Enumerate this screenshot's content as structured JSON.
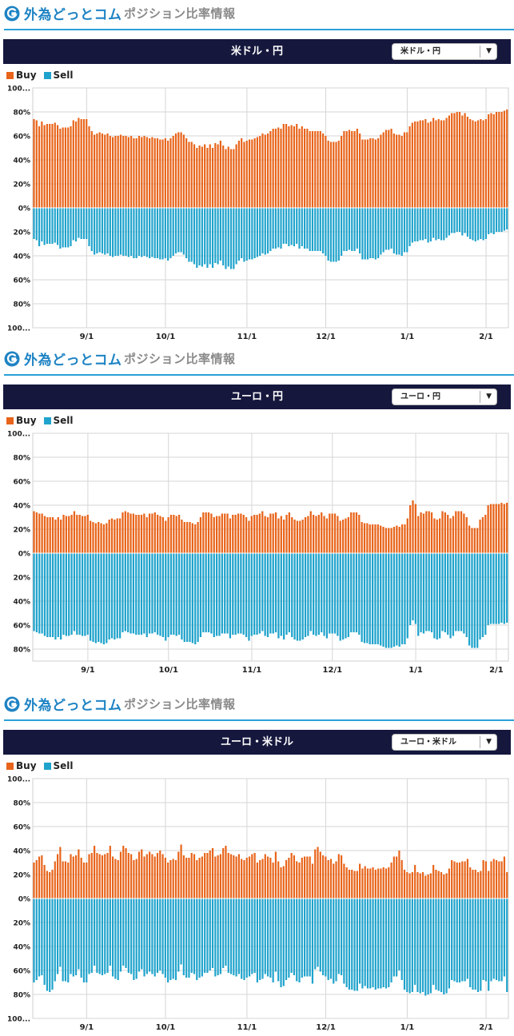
{
  "header": {
    "brand": "外為どっとコム",
    "subtitle": "ポジション比率情報"
  },
  "legend": {
    "buy": "Buy",
    "sell": "Sell"
  },
  "colors": {
    "buy": "#e8641a",
    "sell": "#1fa3cc",
    "titlebar": "#15173d",
    "accent": "#2aa0d8"
  },
  "chart_data": [
    {
      "type": "bar",
      "title": "米ドル・円",
      "select_value": "米ドル・円",
      "series": [
        {
          "name": "Buy"
        },
        {
          "name": "Sell"
        }
      ],
      "x_ticks": [
        "9/1",
        "10/1",
        "11/1",
        "12/1",
        "1/1",
        "2/1"
      ],
      "y_ticks": [
        "100...",
        "80%",
        "60%",
        "40%",
        "20%",
        "0%",
        "20%",
        "40%",
        "60%",
        "80%",
        "100..."
      ],
      "ylim": [
        -100,
        100
      ],
      "grid": true,
      "buy_values": [
        74,
        73,
        68,
        72,
        69,
        70,
        70,
        70,
        71,
        69,
        66,
        67,
        67,
        67,
        68,
        73,
        72,
        75,
        74,
        74,
        74,
        68,
        64,
        61,
        62,
        63,
        62,
        61,
        62,
        60,
        59,
        60,
        60,
        61,
        60,
        60,
        59,
        60,
        58,
        58,
        60,
        59,
        60,
        59,
        58,
        59,
        58,
        58,
        57,
        57,
        58,
        56,
        58,
        60,
        62,
        63,
        63,
        61,
        58,
        55,
        55,
        53,
        50,
        52,
        51,
        53,
        50,
        53,
        50,
        54,
        53,
        56,
        52,
        49,
        51,
        49,
        49,
        53,
        56,
        58,
        55,
        56,
        57,
        57,
        58,
        59,
        60,
        62,
        61,
        62,
        64,
        66,
        66,
        67,
        66,
        70,
        70,
        68,
        69,
        68,
        70,
        66,
        68,
        66,
        66,
        64,
        64,
        64,
        64,
        64,
        62,
        60,
        56,
        55,
        55,
        55,
        56,
        60,
        64,
        64,
        65,
        64,
        64,
        66,
        62,
        57,
        57,
        57,
        58,
        58,
        57,
        58,
        61,
        63,
        65,
        65,
        66,
        62,
        61,
        61,
        60,
        63,
        63,
        68,
        71,
        72,
        72,
        73,
        73,
        74,
        71,
        72,
        75,
        73,
        74,
        73,
        73,
        75,
        77,
        79,
        79,
        80,
        80,
        77,
        79,
        76,
        74,
        73,
        72,
        73,
        74,
        73,
        74,
        78,
        79,
        78,
        80,
        80,
        80,
        81,
        82
      ],
      "sell_values": [
        26,
        27,
        32,
        28,
        31,
        30,
        30,
        30,
        29,
        31,
        34,
        33,
        33,
        33,
        32,
        27,
        28,
        25,
        26,
        26,
        26,
        32,
        36,
        39,
        38,
        37,
        38,
        39,
        38,
        40,
        41,
        40,
        40,
        39,
        40,
        40,
        41,
        40,
        42,
        42,
        40,
        41,
        40,
        41,
        42,
        41,
        42,
        42,
        43,
        43,
        42,
        44,
        42,
        40,
        38,
        37,
        37,
        39,
        42,
        45,
        45,
        47,
        50,
        48,
        49,
        47,
        50,
        47,
        50,
        46,
        47,
        44,
        48,
        51,
        49,
        51,
        51,
        47,
        44,
        42,
        45,
        44,
        43,
        43,
        42,
        41,
        40,
        38,
        39,
        38,
        36,
        34,
        34,
        33,
        34,
        30,
        30,
        32,
        31,
        32,
        30,
        34,
        32,
        34,
        34,
        36,
        36,
        36,
        36,
        36,
        38,
        40,
        44,
        45,
        45,
        45,
        44,
        40,
        36,
        36,
        35,
        36,
        36,
        34,
        38,
        43,
        43,
        43,
        42,
        42,
        43,
        42,
        39,
        37,
        35,
        35,
        34,
        38,
        39,
        39,
        40,
        37,
        37,
        32,
        29,
        28,
        28,
        27,
        27,
        26,
        29,
        28,
        25,
        27,
        26,
        27,
        27,
        25,
        23,
        21,
        21,
        20,
        20,
        23,
        21,
        24,
        26,
        27,
        28,
        27,
        26,
        27,
        26,
        22,
        21,
        22,
        20,
        20,
        20,
        19,
        18
      ]
    },
    {
      "type": "bar",
      "title": "ユーロ・円",
      "select_value": "ユーロ・円",
      "series": [
        {
          "name": "Buy"
        },
        {
          "name": "Sell"
        }
      ],
      "x_ticks": [
        "9/1",
        "10/1",
        "11/1",
        "12/1",
        "1/1",
        "2/1"
      ],
      "y_ticks": [
        "100...",
        "80%",
        "60%",
        "40%",
        "20%",
        "0%",
        "20%",
        "40%",
        "60%",
        "80%"
      ],
      "ylim": [
        -90,
        100
      ],
      "grid": true,
      "buy_values": [
        35,
        34,
        33,
        33,
        31,
        30,
        30,
        30,
        28,
        30,
        28,
        32,
        31,
        31,
        32,
        35,
        32,
        32,
        31,
        31,
        32,
        27,
        26,
        25,
        26,
        25,
        24,
        25,
        28,
        29,
        28,
        29,
        29,
        34,
        35,
        34,
        33,
        33,
        32,
        32,
        32,
        33,
        30,
        33,
        33,
        34,
        32,
        31,
        30,
        27,
        30,
        32,
        32,
        31,
        32,
        28,
        26,
        26,
        26,
        25,
        24,
        26,
        30,
        34,
        34,
        34,
        33,
        30,
        31,
        31,
        33,
        33,
        33,
        29,
        32,
        32,
        33,
        33,
        32,
        30,
        27,
        31,
        32,
        32,
        33,
        35,
        31,
        30,
        33,
        33,
        34,
        29,
        31,
        28,
        32,
        34,
        30,
        28,
        27,
        27,
        28,
        30,
        31,
        35,
        32,
        31,
        32,
        34,
        31,
        29,
        33,
        33,
        33,
        31,
        27,
        28,
        29,
        30,
        34,
        34,
        34,
        32,
        26,
        25,
        25,
        24,
        24,
        24,
        24,
        23,
        22,
        21,
        21,
        21,
        22,
        23,
        22,
        24,
        24,
        29,
        40,
        44,
        41,
        31,
        34,
        33,
        35,
        35,
        34,
        29,
        28,
        29,
        35,
        34,
        32,
        29,
        31,
        35,
        35,
        35,
        33,
        30,
        23,
        21,
        21,
        21,
        28,
        30,
        32,
        40,
        41,
        41,
        41,
        41,
        42,
        41,
        42
      ],
      "sell_values": [
        65,
        66,
        67,
        67,
        69,
        70,
        70,
        70,
        72,
        70,
        72,
        68,
        69,
        69,
        68,
        65,
        68,
        68,
        69,
        69,
        68,
        73,
        74,
        75,
        74,
        75,
        76,
        75,
        72,
        71,
        72,
        71,
        71,
        66,
        65,
        66,
        67,
        67,
        68,
        68,
        68,
        67,
        70,
        67,
        67,
        66,
        68,
        69,
        70,
        73,
        70,
        68,
        68,
        69,
        68,
        72,
        74,
        74,
        74,
        75,
        76,
        74,
        70,
        66,
        66,
        66,
        67,
        70,
        69,
        69,
        67,
        67,
        67,
        71,
        68,
        68,
        67,
        67,
        68,
        70,
        73,
        69,
        68,
        68,
        67,
        65,
        69,
        70,
        67,
        67,
        66,
        71,
        69,
        72,
        68,
        66,
        70,
        72,
        73,
        73,
        72,
        70,
        69,
        65,
        68,
        69,
        68,
        66,
        69,
        71,
        67,
        67,
        67,
        69,
        73,
        72,
        71,
        70,
        66,
        66,
        66,
        68,
        74,
        75,
        75,
        76,
        76,
        76,
        76,
        77,
        78,
        79,
        79,
        79,
        78,
        77,
        78,
        76,
        76,
        71,
        60,
        56,
        59,
        69,
        66,
        67,
        65,
        65,
        66,
        71,
        72,
        71,
        65,
        66,
        68,
        71,
        69,
        65,
        65,
        65,
        67,
        70,
        77,
        79,
        79,
        79,
        72,
        70,
        68,
        60,
        59,
        59,
        59,
        59,
        58,
        59,
        58
      ]
    },
    {
      "type": "bar",
      "title": "ユーロ・米ドル",
      "select_value": "ユーロ・米ドル",
      "series": [
        {
          "name": "Buy"
        },
        {
          "name": "Sell"
        }
      ],
      "x_ticks": [
        "9/1",
        "10/1",
        "11/1",
        "12/1",
        "1/1",
        "2/1"
      ],
      "y_ticks": [
        "100...",
        "80%",
        "60%",
        "40%",
        "20%",
        "0%",
        "20%",
        "40%",
        "60%",
        "80%",
        "100..."
      ],
      "ylim": [
        -100,
        100
      ],
      "grid": true,
      "buy_values": [
        30,
        32,
        35,
        36,
        28,
        23,
        22,
        24,
        31,
        37,
        43,
        31,
        31,
        30,
        37,
        35,
        36,
        41,
        34,
        30,
        30,
        37,
        38,
        44,
        38,
        37,
        36,
        37,
        38,
        44,
        35,
        33,
        32,
        39,
        44,
        42,
        38,
        37,
        32,
        33,
        39,
        41,
        35,
        37,
        39,
        37,
        35,
        38,
        40,
        37,
        34,
        30,
        32,
        33,
        32,
        39,
        45,
        36,
        34,
        34,
        38,
        37,
        32,
        34,
        35,
        38,
        38,
        40,
        42,
        35,
        36,
        37,
        42,
        44,
        38,
        37,
        36,
        35,
        37,
        33,
        32,
        34,
        35,
        37,
        38,
        30,
        32,
        33,
        37,
        35,
        34,
        30,
        39,
        31,
        26,
        27,
        32,
        34,
        38,
        36,
        31,
        30,
        34,
        35,
        35,
        35,
        29,
        41,
        43,
        39,
        36,
        35,
        32,
        33,
        29,
        31,
        37,
        36,
        29,
        26,
        24,
        24,
        23,
        23,
        29,
        25,
        27,
        25,
        25,
        26,
        24,
        25,
        25,
        26,
        25,
        26,
        30,
        35,
        35,
        40,
        32,
        24,
        22,
        21,
        22,
        28,
        22,
        21,
        22,
        19,
        20,
        21,
        28,
        24,
        23,
        22,
        20,
        21,
        25,
        32,
        31,
        30,
        30,
        31,
        31,
        33,
        26,
        24,
        24,
        22,
        23,
        32,
        31,
        23,
        31,
        33,
        32,
        31,
        31,
        35,
        22
      ],
      "sell_values": [
        70,
        68,
        65,
        64,
        72,
        77,
        78,
        76,
        69,
        63,
        57,
        69,
        69,
        70,
        63,
        65,
        64,
        59,
        66,
        70,
        70,
        63,
        62,
        56,
        62,
        63,
        64,
        63,
        62,
        56,
        65,
        67,
        68,
        61,
        56,
        58,
        62,
        63,
        68,
        67,
        61,
        59,
        65,
        63,
        61,
        63,
        65,
        62,
        60,
        63,
        66,
        70,
        68,
        67,
        68,
        61,
        55,
        64,
        66,
        66,
        62,
        63,
        68,
        66,
        65,
        62,
        62,
        60,
        58,
        65,
        64,
        63,
        58,
        56,
        62,
        63,
        64,
        65,
        63,
        67,
        68,
        66,
        65,
        63,
        62,
        70,
        68,
        67,
        63,
        65,
        66,
        70,
        61,
        69,
        74,
        73,
        68,
        66,
        62,
        64,
        69,
        70,
        66,
        65,
        65,
        65,
        71,
        59,
        57,
        61,
        64,
        65,
        68,
        67,
        71,
        69,
        63,
        64,
        71,
        74,
        76,
        76,
        77,
        77,
        71,
        75,
        73,
        75,
        75,
        74,
        76,
        75,
        75,
        74,
        75,
        74,
        70,
        65,
        65,
        60,
        68,
        76,
        78,
        79,
        78,
        72,
        78,
        79,
        78,
        81,
        80,
        79,
        72,
        76,
        77,
        78,
        80,
        79,
        75,
        68,
        69,
        70,
        70,
        69,
        69,
        67,
        74,
        76,
        76,
        78,
        77,
        68,
        69,
        77,
        69,
        67,
        68,
        69,
        69,
        65,
        78
      ]
    }
  ]
}
